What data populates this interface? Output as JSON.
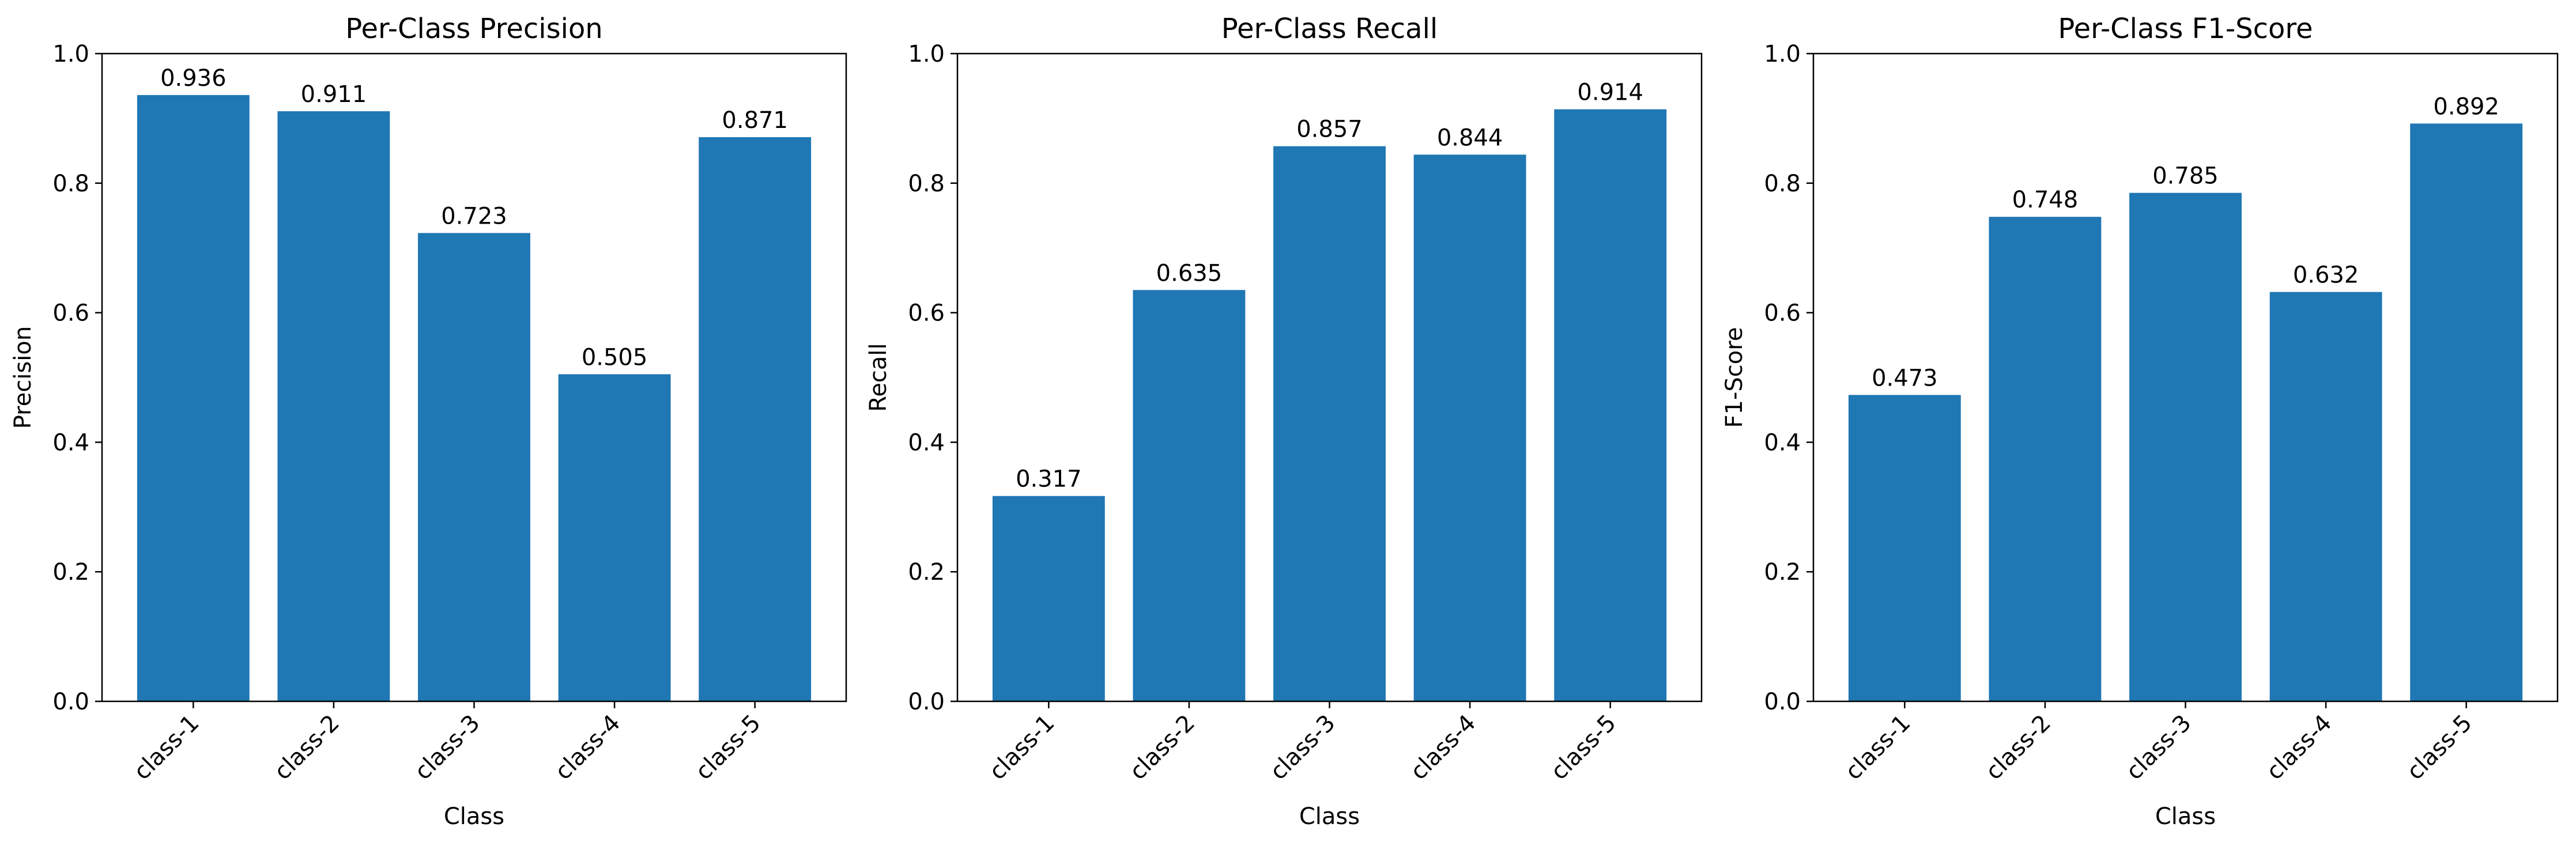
{
  "colors": {
    "bar": "#1f77b4",
    "axis": "#000000",
    "background": "#ffffff"
  },
  "chart_data": [
    {
      "type": "bar",
      "title": "Per-Class Precision",
      "xlabel": "Class",
      "ylabel": "Precision",
      "categories": [
        "class-1",
        "class-2",
        "class-3",
        "class-4",
        "class-5"
      ],
      "values": [
        0.936,
        0.911,
        0.723,
        0.505,
        0.871
      ],
      "value_labels": [
        "0.936",
        "0.911",
        "0.723",
        "0.505",
        "0.871"
      ],
      "ylim": [
        0,
        1
      ],
      "yticks": [
        "0.0",
        "0.2",
        "0.4",
        "0.6",
        "0.8",
        "1.0"
      ],
      "grid": false,
      "x_tick_rotation": 45
    },
    {
      "type": "bar",
      "title": "Per-Class Recall",
      "xlabel": "Class",
      "ylabel": "Recall",
      "categories": [
        "class-1",
        "class-2",
        "class-3",
        "class-4",
        "class-5"
      ],
      "values": [
        0.317,
        0.635,
        0.857,
        0.844,
        0.914
      ],
      "value_labels": [
        "0.317",
        "0.635",
        "0.857",
        "0.844",
        "0.914"
      ],
      "ylim": [
        0,
        1
      ],
      "yticks": [
        "0.0",
        "0.2",
        "0.4",
        "0.6",
        "0.8",
        "1.0"
      ],
      "grid": false,
      "x_tick_rotation": 45
    },
    {
      "type": "bar",
      "title": "Per-Class F1-Score",
      "xlabel": "Class",
      "ylabel": "F1-Score",
      "categories": [
        "class-1",
        "class-2",
        "class-3",
        "class-4",
        "class-5"
      ],
      "values": [
        0.473,
        0.748,
        0.785,
        0.632,
        0.892
      ],
      "value_labels": [
        "0.473",
        "0.748",
        "0.785",
        "0.632",
        "0.892"
      ],
      "ylim": [
        0,
        1
      ],
      "yticks": [
        "0.0",
        "0.2",
        "0.4",
        "0.6",
        "0.8",
        "1.0"
      ],
      "grid": false,
      "x_tick_rotation": 45
    }
  ]
}
